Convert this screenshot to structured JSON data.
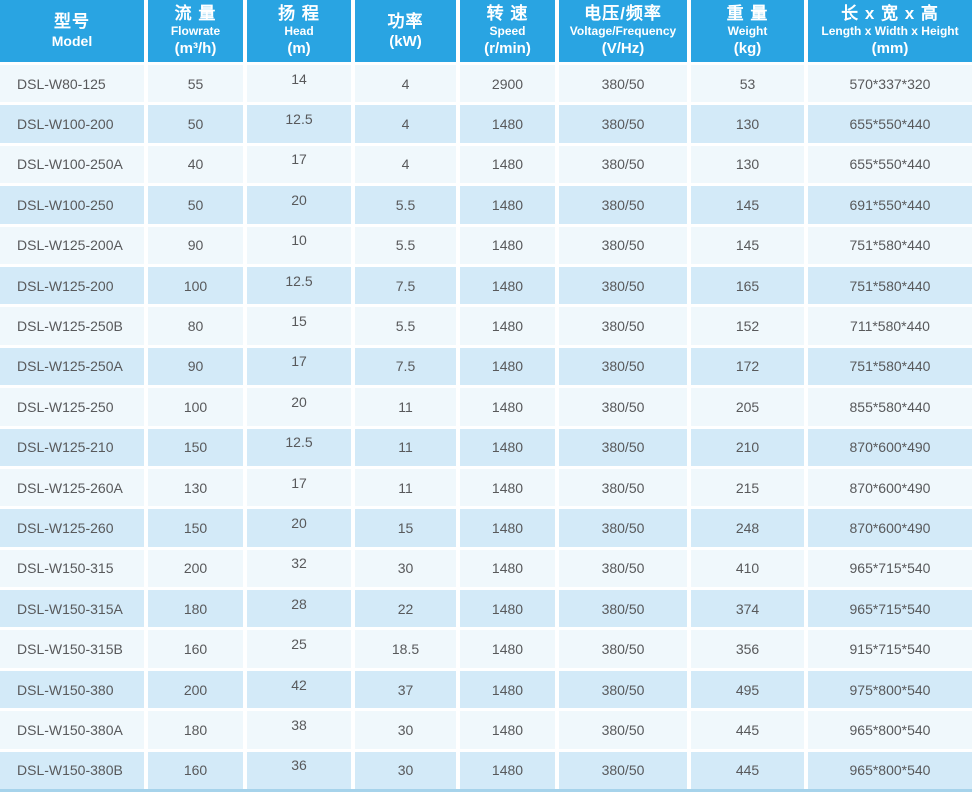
{
  "colors": {
    "header_bg": "#29a4e2",
    "header_text": "#ffffff",
    "row_light": "#f0f8fc",
    "row_dark": "#d3eaf8",
    "cell_text": "#58595b",
    "bottom_border": "#a6d3eb"
  },
  "table": {
    "columns": [
      {
        "zh": "型号",
        "en": "Model",
        "unit": ""
      },
      {
        "zh": "流 量",
        "en": "Flowrate",
        "unit": "(m³/h)"
      },
      {
        "zh": "扬 程",
        "en": "Head",
        "unit": "(m)"
      },
      {
        "zh": "功率",
        "en": "",
        "unit": "(kW)"
      },
      {
        "zh": "转 速",
        "en": "Speed",
        "unit": "(r/min)"
      },
      {
        "zh": "电压/频率",
        "en": "Voltage/Frequency",
        "unit": "(V/Hz)"
      },
      {
        "zh": "重 量",
        "en": "Weight",
        "unit": "(kg)"
      },
      {
        "zh": "长 x 宽 x 高",
        "en": "Length x Width x Height",
        "unit": "(mm)"
      }
    ],
    "rows": [
      [
        "DSL-W80-125",
        "55",
        "14",
        "4",
        "2900",
        "380/50",
        "53",
        "570*337*320"
      ],
      [
        "DSL-W100-200",
        "50",
        "12.5",
        "4",
        "1480",
        "380/50",
        "130",
        "655*550*440"
      ],
      [
        "DSL-W100-250A",
        "40",
        "17",
        "4",
        "1480",
        "380/50",
        "130",
        "655*550*440"
      ],
      [
        "DSL-W100-250",
        "50",
        "20",
        "5.5",
        "1480",
        "380/50",
        "145",
        "691*550*440"
      ],
      [
        "DSL-W125-200A",
        "90",
        "10",
        "5.5",
        "1480",
        "380/50",
        "145",
        "751*580*440"
      ],
      [
        "DSL-W125-200",
        "100",
        "12.5",
        "7.5",
        "1480",
        "380/50",
        "165",
        "751*580*440"
      ],
      [
        "DSL-W125-250B",
        "80",
        "15",
        "5.5",
        "1480",
        "380/50",
        "152",
        "711*580*440"
      ],
      [
        "DSL-W125-250A",
        "90",
        "17",
        "7.5",
        "1480",
        "380/50",
        "172",
        "751*580*440"
      ],
      [
        "DSL-W125-250",
        "100",
        "20",
        "11",
        "1480",
        "380/50",
        "205",
        "855*580*440"
      ],
      [
        "DSL-W125-210",
        "150",
        "12.5",
        "11",
        "1480",
        "380/50",
        "210",
        "870*600*490"
      ],
      [
        "DSL-W125-260A",
        "130",
        "17",
        "11",
        "1480",
        "380/50",
        "215",
        "870*600*490"
      ],
      [
        "DSL-W125-260",
        "150",
        "20",
        "15",
        "1480",
        "380/50",
        "248",
        "870*600*490"
      ],
      [
        "DSL-W150-315",
        "200",
        "32",
        "30",
        "1480",
        "380/50",
        "410",
        "965*715*540"
      ],
      [
        "DSL-W150-315A",
        "180",
        "28",
        "22",
        "1480",
        "380/50",
        "374",
        "965*715*540"
      ],
      [
        "DSL-W150-315B",
        "160",
        "25",
        "18.5",
        "1480",
        "380/50",
        "356",
        "915*715*540"
      ],
      [
        "DSL-W150-380",
        "200",
        "42",
        "37",
        "1480",
        "380/50",
        "495",
        "975*800*540"
      ],
      [
        "DSL-W150-380A",
        "180",
        "38",
        "30",
        "1480",
        "380/50",
        "445",
        "965*800*540"
      ],
      [
        "DSL-W150-380B",
        "160",
        "36",
        "30",
        "1480",
        "380/50",
        "445",
        "965*800*540"
      ]
    ]
  }
}
